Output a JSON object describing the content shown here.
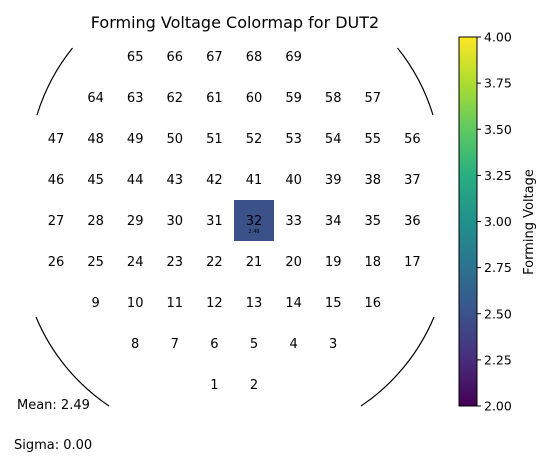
{
  "chart_data": {
    "type": "heatmap",
    "title": "Forming Voltage Colormap for DUT2",
    "colorbar": {
      "label": "Forming Voltage",
      "range": [
        2.0,
        4.0
      ],
      "ticks": [
        "2.00",
        "2.25",
        "2.50",
        "2.75",
        "3.00",
        "3.25",
        "3.50",
        "3.75",
        "4.00"
      ],
      "colormap": "viridis"
    },
    "grid": {
      "columns": 10,
      "rows": 9
    },
    "dies": [
      {
        "id": "65",
        "col": 2,
        "row": 0
      },
      {
        "id": "66",
        "col": 3,
        "row": 0
      },
      {
        "id": "67",
        "col": 4,
        "row": 0
      },
      {
        "id": "68",
        "col": 5,
        "row": 0
      },
      {
        "id": "69",
        "col": 6,
        "row": 0
      },
      {
        "id": "64",
        "col": 1,
        "row": 1
      },
      {
        "id": "63",
        "col": 2,
        "row": 1
      },
      {
        "id": "62",
        "col": 3,
        "row": 1
      },
      {
        "id": "61",
        "col": 4,
        "row": 1
      },
      {
        "id": "60",
        "col": 5,
        "row": 1
      },
      {
        "id": "59",
        "col": 6,
        "row": 1
      },
      {
        "id": "58",
        "col": 7,
        "row": 1
      },
      {
        "id": "57",
        "col": 8,
        "row": 1
      },
      {
        "id": "47",
        "col": 0,
        "row": 2
      },
      {
        "id": "48",
        "col": 1,
        "row": 2
      },
      {
        "id": "49",
        "col": 2,
        "row": 2
      },
      {
        "id": "50",
        "col": 3,
        "row": 2
      },
      {
        "id": "51",
        "col": 4,
        "row": 2
      },
      {
        "id": "52",
        "col": 5,
        "row": 2
      },
      {
        "id": "53",
        "col": 6,
        "row": 2
      },
      {
        "id": "54",
        "col": 7,
        "row": 2
      },
      {
        "id": "55",
        "col": 8,
        "row": 2
      },
      {
        "id": "56",
        "col": 9,
        "row": 2
      },
      {
        "id": "46",
        "col": 0,
        "row": 3
      },
      {
        "id": "45",
        "col": 1,
        "row": 3
      },
      {
        "id": "44",
        "col": 2,
        "row": 3
      },
      {
        "id": "43",
        "col": 3,
        "row": 3
      },
      {
        "id": "42",
        "col": 4,
        "row": 3
      },
      {
        "id": "41",
        "col": 5,
        "row": 3
      },
      {
        "id": "40",
        "col": 6,
        "row": 3
      },
      {
        "id": "39",
        "col": 7,
        "row": 3
      },
      {
        "id": "38",
        "col": 8,
        "row": 3
      },
      {
        "id": "37",
        "col": 9,
        "row": 3
      },
      {
        "id": "27",
        "col": 0,
        "row": 4
      },
      {
        "id": "28",
        "col": 1,
        "row": 4
      },
      {
        "id": "29",
        "col": 2,
        "row": 4
      },
      {
        "id": "30",
        "col": 3,
        "row": 4
      },
      {
        "id": "31",
        "col": 4,
        "row": 4
      },
      {
        "id": "32",
        "col": 5,
        "row": 4,
        "value": 2.49,
        "value_label": "2.49"
      },
      {
        "id": "33",
        "col": 6,
        "row": 4
      },
      {
        "id": "34",
        "col": 7,
        "row": 4
      },
      {
        "id": "35",
        "col": 8,
        "row": 4
      },
      {
        "id": "36",
        "col": 9,
        "row": 4
      },
      {
        "id": "26",
        "col": 0,
        "row": 5
      },
      {
        "id": "25",
        "col": 1,
        "row": 5
      },
      {
        "id": "24",
        "col": 2,
        "row": 5
      },
      {
        "id": "23",
        "col": 3,
        "row": 5
      },
      {
        "id": "22",
        "col": 4,
        "row": 5
      },
      {
        "id": "21",
        "col": 5,
        "row": 5
      },
      {
        "id": "20",
        "col": 6,
        "row": 5
      },
      {
        "id": "19",
        "col": 7,
        "row": 5
      },
      {
        "id": "18",
        "col": 8,
        "row": 5
      },
      {
        "id": "17",
        "col": 9,
        "row": 5
      },
      {
        "id": "9",
        "col": 1,
        "row": 6
      },
      {
        "id": "10",
        "col": 2,
        "row": 6
      },
      {
        "id": "11",
        "col": 3,
        "row": 6
      },
      {
        "id": "12",
        "col": 4,
        "row": 6
      },
      {
        "id": "13",
        "col": 5,
        "row": 6
      },
      {
        "id": "14",
        "col": 6,
        "row": 6
      },
      {
        "id": "15",
        "col": 7,
        "row": 6
      },
      {
        "id": "16",
        "col": 8,
        "row": 6
      },
      {
        "id": "8",
        "col": 2,
        "row": 7
      },
      {
        "id": "7",
        "col": 3,
        "row": 7
      },
      {
        "id": "6",
        "col": 4,
        "row": 7
      },
      {
        "id": "5",
        "col": 5,
        "row": 7
      },
      {
        "id": "4",
        "col": 6,
        "row": 7
      },
      {
        "id": "3",
        "col": 7,
        "row": 7
      },
      {
        "id": "1",
        "col": 4,
        "row": 8
      },
      {
        "id": "2",
        "col": 5,
        "row": 8
      }
    ],
    "stats": {
      "mean": "Mean: 2.49",
      "sigma": "Sigma: 0.00"
    }
  }
}
